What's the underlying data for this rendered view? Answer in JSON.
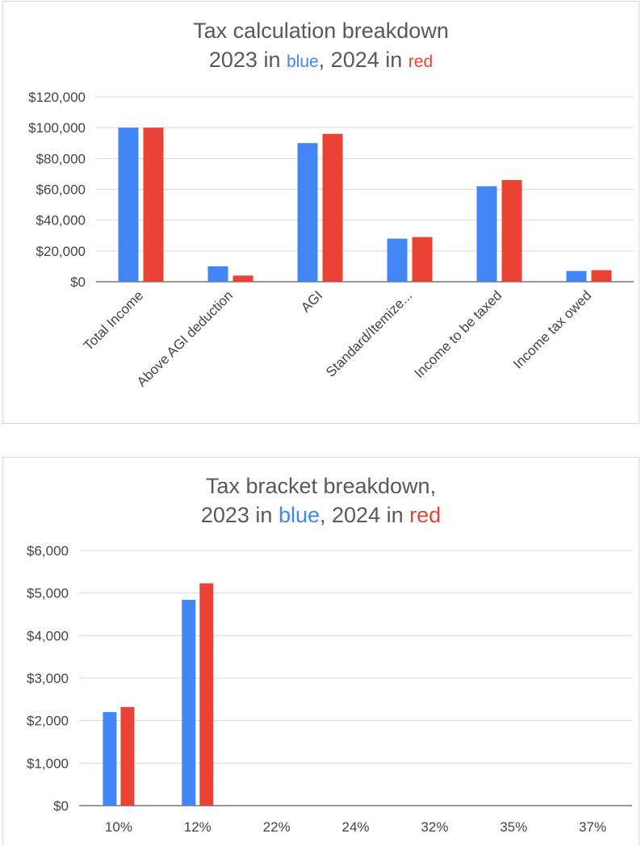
{
  "chart_data": [
    {
      "type": "bar",
      "title": {
        "line1": "Tax calculation breakdown",
        "line2_prefix": "2023 in ",
        "blue_word": "blue",
        "line2_middle": ", 2024 in ",
        "red_word": "red"
      },
      "categories": [
        "Total Income",
        "Above AGI deduction",
        "AGI",
        "Standard/Itemize...",
        "Income to be taxed",
        "Income tax owed"
      ],
      "series": [
        {
          "values": [
            100000,
            10000,
            90000,
            28000,
            62000,
            7000
          ],
          "color": "#4285f4"
        },
        {
          "values": [
            100000,
            4000,
            96000,
            29000,
            66000,
            7500
          ],
          "color": "#ea4335"
        }
      ],
      "yticks": [
        "$0",
        "$20,000",
        "$40,000",
        "$60,000",
        "$80,000",
        "$100,000",
        "$120,000"
      ],
      "ylim": [
        0,
        120000
      ],
      "grid": true,
      "xlabel": "",
      "ylabel": ""
    },
    {
      "type": "bar",
      "title": {
        "line1": "Tax bracket breakdown,",
        "line2_prefix": "2023 in ",
        "blue_word": "blue",
        "line2_middle": ", 2024 in ",
        "red_word": "red"
      },
      "categories": [
        "10%",
        "12%",
        "22%",
        "24%",
        "32%",
        "35%",
        "37%"
      ],
      "series": [
        {
          "values": [
            2200,
            4840,
            0,
            0,
            0,
            0,
            0
          ],
          "color": "#4285f4"
        },
        {
          "values": [
            2320,
            5230,
            0,
            0,
            0,
            0,
            0
          ],
          "color": "#ea4335"
        }
      ],
      "yticks": [
        "$0",
        "$1,000",
        "$2,000",
        "$3,000",
        "$4,000",
        "$5,000",
        "$6,000"
      ],
      "ylim": [
        0,
        6000
      ],
      "grid": true,
      "xlabel": "",
      "ylabel": ""
    }
  ]
}
